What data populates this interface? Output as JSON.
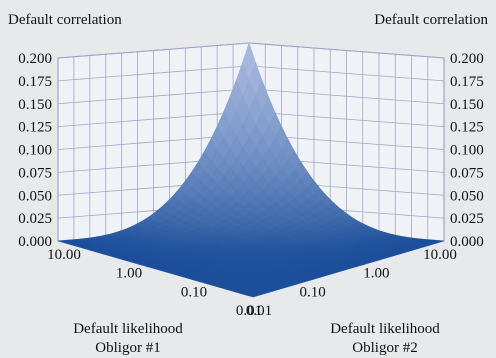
{
  "chart_data": {
    "type": "surface",
    "zlabel_left": "Default correlation",
    "zlabel_right": "Default correlation",
    "xlabel": [
      "Default likelihood",
      "Obligor #1"
    ],
    "ylabel": [
      "Default likelihood",
      "Obligor #2"
    ],
    "z_ticks": [
      "0.000",
      "0.025",
      "0.050",
      "0.075",
      "0.100",
      "0.125",
      "0.150",
      "0.175",
      "0.200"
    ],
    "zlim": [
      0,
      0.2
    ],
    "x_ticks": [
      "10.00",
      "1.00",
      "0.10",
      "0.01"
    ],
    "y_ticks": [
      "0.01",
      "0.10",
      "1.00",
      "10.00"
    ],
    "x_scale": "log",
    "y_scale": "log",
    "xlim": [
      0.01,
      10
    ],
    "ylim": [
      0.01,
      10
    ],
    "surface_peak": {
      "x": 10,
      "y": 10,
      "z": 0.2
    },
    "surface_floor_value": 0.0,
    "grid": true,
    "colors": {
      "surface_dark": "#1c4f9a",
      "surface_light": "#aab9dd",
      "grid": "#8fa0c0",
      "background": "#e8e9ea"
    }
  }
}
